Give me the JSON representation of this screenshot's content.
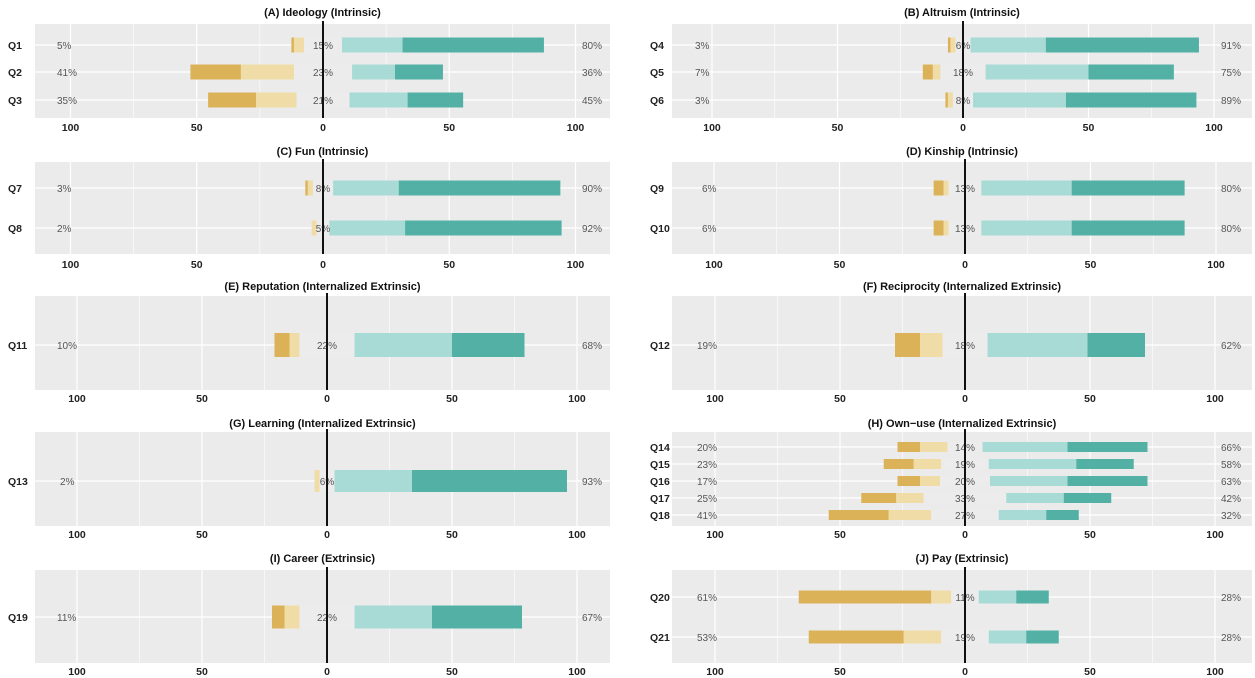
{
  "chart_data": [
    {
      "type": "bar",
      "title": "(A) Ideology (Intrinsic)",
      "xticks": [
        "100",
        "50",
        "0",
        "50",
        "100"
      ],
      "items": [
        {
          "q": "Q1",
          "neg_pct": "5%",
          "neu_pct": "15%",
          "pos_pct": "80%",
          "strong_neg": 1,
          "neg": 4,
          "neutral": 15,
          "pos": 24,
          "strong_pos": 56
        },
        {
          "q": "Q2",
          "neg_pct": "41%",
          "neu_pct": "23%",
          "pos_pct": "36%",
          "strong_neg": 20,
          "neg": 21,
          "neutral": 23,
          "pos": 17,
          "strong_pos": 19
        },
        {
          "q": "Q3",
          "neg_pct": "35%",
          "neu_pct": "21%",
          "pos_pct": "45%",
          "strong_neg": 19,
          "neg": 16,
          "neutral": 21,
          "pos": 23,
          "strong_pos": 22
        }
      ]
    },
    {
      "type": "bar",
      "title": "(B) Altruism (Intrinsic)",
      "xticks": [
        "100",
        "50",
        "0",
        "50",
        "100"
      ],
      "items": [
        {
          "q": "Q4",
          "neg_pct": "3%",
          "neu_pct": "6%",
          "pos_pct": "91%",
          "strong_neg": 1,
          "neg": 2,
          "neutral": 6,
          "pos": 30,
          "strong_pos": 61
        },
        {
          "q": "Q5",
          "neg_pct": "7%",
          "neu_pct": "18%",
          "pos_pct": "75%",
          "strong_neg": 4,
          "neg": 3,
          "neutral": 18,
          "pos": 41,
          "strong_pos": 34
        },
        {
          "q": "Q6",
          "neg_pct": "3%",
          "neu_pct": "8%",
          "pos_pct": "89%",
          "strong_neg": 1,
          "neg": 2,
          "neutral": 8,
          "pos": 37,
          "strong_pos": 52
        }
      ]
    },
    {
      "type": "bar",
      "title": "(C) Fun (Intrinsic)",
      "xticks": [
        "100",
        "50",
        "0",
        "50",
        "100"
      ],
      "items": [
        {
          "q": "Q7",
          "neg_pct": "3%",
          "neu_pct": "8%",
          "pos_pct": "90%",
          "strong_neg": 1,
          "neg": 2,
          "neutral": 8,
          "pos": 26,
          "strong_pos": 64
        },
        {
          "q": "Q8",
          "neg_pct": "2%",
          "neu_pct": "5%",
          "pos_pct": "92%",
          "strong_neg": 0,
          "neg": 2,
          "neutral": 5,
          "pos": 30,
          "strong_pos": 62
        }
      ]
    },
    {
      "type": "bar",
      "title": "(D) Kinship (Intrinsic)",
      "xticks": [
        "100",
        "50",
        "0",
        "50",
        "100"
      ],
      "items": [
        {
          "q": "Q9",
          "neg_pct": "6%",
          "neu_pct": "13%",
          "pos_pct": "80%",
          "strong_neg": 4,
          "neg": 2,
          "neutral": 13,
          "pos": 36,
          "strong_pos": 45
        },
        {
          "q": "Q10",
          "neg_pct": "6%",
          "neu_pct": "13%",
          "pos_pct": "80%",
          "strong_neg": 4,
          "neg": 2,
          "neutral": 13,
          "pos": 36,
          "strong_pos": 45
        }
      ]
    },
    {
      "type": "bar",
      "title": "(E) Reputation  (Internalized Extrinsic)",
      "xticks": [
        "100",
        "50",
        "0",
        "50",
        "100"
      ],
      "items": [
        {
          "q": "Q11",
          "neg_pct": "10%",
          "neu_pct": "22%",
          "pos_pct": "68%",
          "strong_neg": 6,
          "neg": 4,
          "neutral": 22,
          "pos": 39,
          "strong_pos": 29
        }
      ]
    },
    {
      "type": "bar",
      "title": "(F) Reciprocity (Internalized Extrinsic)",
      "xticks": [
        "100",
        "50",
        "0",
        "50",
        "100"
      ],
      "items": [
        {
          "q": "Q12",
          "neg_pct": "19%",
          "neu_pct": "18%",
          "pos_pct": "62%",
          "strong_neg": 10,
          "neg": 9,
          "neutral": 18,
          "pos": 40,
          "strong_pos": 23
        }
      ]
    },
    {
      "type": "bar",
      "title": "(G) Learning (Internalized Extrinsic)",
      "xticks": [
        "100",
        "50",
        "0",
        "50",
        "100"
      ],
      "items": [
        {
          "q": "Q13",
          "neg_pct": "2%",
          "neu_pct": "6%",
          "pos_pct": "93%",
          "strong_neg": 0,
          "neg": 2,
          "neutral": 6,
          "pos": 31,
          "strong_pos": 62
        }
      ]
    },
    {
      "type": "bar",
      "title": "(H) Own−use (Internalized Extrinsic)",
      "xticks": [
        "100",
        "50",
        "0",
        "50",
        "100"
      ],
      "items": [
        {
          "q": "Q14",
          "neg_pct": "20%",
          "neu_pct": "14%",
          "pos_pct": "66%",
          "strong_neg": 9,
          "neg": 11,
          "neutral": 14,
          "pos": 34,
          "strong_pos": 32
        },
        {
          "q": "Q15",
          "neg_pct": "23%",
          "neu_pct": "19%",
          "pos_pct": "58%",
          "strong_neg": 12,
          "neg": 11,
          "neutral": 19,
          "pos": 35,
          "strong_pos": 23
        },
        {
          "q": "Q16",
          "neg_pct": "17%",
          "neu_pct": "20%",
          "pos_pct": "63%",
          "strong_neg": 9,
          "neg": 8,
          "neutral": 20,
          "pos": 31,
          "strong_pos": 32
        },
        {
          "q": "Q17",
          "neg_pct": "25%",
          "neu_pct": "33%",
          "pos_pct": "42%",
          "strong_neg": 14,
          "neg": 11,
          "neutral": 33,
          "pos": 23,
          "strong_pos": 19
        },
        {
          "q": "Q18",
          "neg_pct": "41%",
          "neu_pct": "27%",
          "pos_pct": "32%",
          "strong_neg": 24,
          "neg": 17,
          "neutral": 27,
          "pos": 19,
          "strong_pos": 13
        }
      ]
    },
    {
      "type": "bar",
      "title": "(I) Career (Extrinsic)",
      "xticks": [
        "100",
        "50",
        "0",
        "50",
        "100"
      ],
      "items": [
        {
          "q": "Q19",
          "neg_pct": "11%",
          "neu_pct": "22%",
          "pos_pct": "67%",
          "strong_neg": 5,
          "neg": 6,
          "neutral": 22,
          "pos": 31,
          "strong_pos": 36
        }
      ]
    },
    {
      "type": "bar",
      "title": "(J) Pay (Extrinsic)",
      "xticks": [
        "100",
        "50",
        "0",
        "50",
        "100"
      ],
      "items": [
        {
          "q": "Q20",
          "neg_pct": "61%",
          "neu_pct": "11%",
          "pos_pct": "28%",
          "strong_neg": 53,
          "neg": 8,
          "neutral": 11,
          "pos": 15,
          "strong_pos": 13
        },
        {
          "q": "Q21",
          "neg_pct": "53%",
          "neu_pct": "19%",
          "pos_pct": "28%",
          "strong_neg": 38,
          "neg": 15,
          "neutral": 19,
          "pos": 15,
          "strong_pos": 13
        }
      ]
    }
  ],
  "colors": {
    "strong_neg": "#dcb259",
    "neg": "#f0dca6",
    "neutral": "#ececec",
    "pos": "#a9dbd6",
    "strong_pos": "#52b0a5",
    "panel_bg": "#ebebeb",
    "grid": "#ffffff",
    "zero_line": "#111111"
  }
}
